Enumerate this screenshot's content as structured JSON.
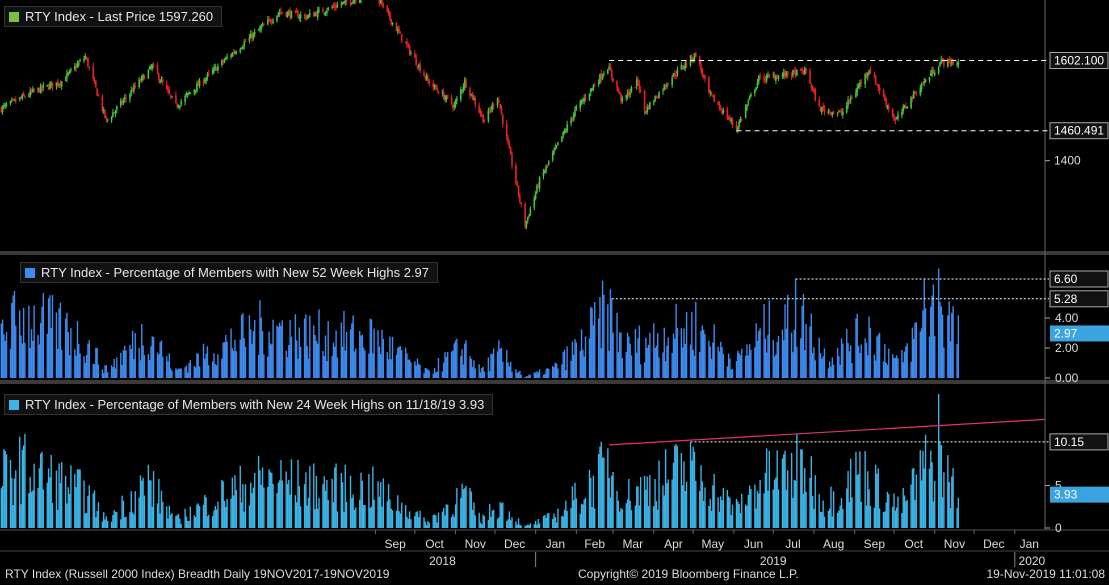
{
  "header": {
    "price_legend": "RTY Index - Last Price 1597.260"
  },
  "colors": {
    "up": "#48c43a",
    "down": "#e8231f",
    "legend_price": "#7ac142",
    "highs52": "#3d8bef",
    "highs24": "#3bb4e6",
    "trend": "#e0307a",
    "value_box": "#3aa3e0",
    "grid": "#2a2a2a",
    "axis_text": "#dcdcdc"
  },
  "chart_data": [
    {
      "type": "candlestick",
      "legend": "RTY Index - Last Price 1597.260",
      "last_price": 1597.26,
      "ylim": [
        1220,
        1720
      ],
      "y_ticks": [
        1400
      ],
      "reference_lines": [
        {
          "label": "1602.100",
          "value": 1602.1
        },
        {
          "label": "1460.491",
          "value": 1460.491
        }
      ],
      "anchors": [
        [
          "2017-11-20",
          1505
        ],
        [
          "2017-12-15",
          1540
        ],
        [
          "2018-01-05",
          1560
        ],
        [
          "2018-01-23",
          1610
        ],
        [
          "2018-02-08",
          1480
        ],
        [
          "2018-03-15",
          1590
        ],
        [
          "2018-04-02",
          1510
        ],
        [
          "2018-05-10",
          1605
        ],
        [
          "2018-06-20",
          1700
        ],
        [
          "2018-07-10",
          1690
        ],
        [
          "2018-08-31",
          1740
        ],
        [
          "2018-10-11",
          1560
        ],
        [
          "2018-10-31",
          1510
        ],
        [
          "2018-11-08",
          1560
        ],
        [
          "2018-11-23",
          1480
        ],
        [
          "2018-12-03",
          1530
        ],
        [
          "2018-12-24",
          1270
        ],
        [
          "2019-01-04",
          1360
        ],
        [
          "2019-01-31",
          1500
        ],
        [
          "2019-02-25",
          1590
        ],
        [
          "2019-03-08",
          1520
        ],
        [
          "2019-03-20",
          1560
        ],
        [
          "2019-03-25",
          1500
        ],
        [
          "2019-04-15",
          1570
        ],
        [
          "2019-05-03",
          1615
        ],
        [
          "2019-05-13",
          1535
        ],
        [
          "2019-06-03",
          1465
        ],
        [
          "2019-06-20",
          1565
        ],
        [
          "2019-07-26",
          1580
        ],
        [
          "2019-08-05",
          1505
        ],
        [
          "2019-08-22",
          1495
        ],
        [
          "2019-09-12",
          1585
        ],
        [
          "2019-10-02",
          1480
        ],
        [
          "2019-10-15",
          1530
        ],
        [
          "2019-11-06",
          1600
        ],
        [
          "2019-11-19",
          1597
        ]
      ]
    },
    {
      "type": "bar",
      "legend": "RTY Index - Percentage of Members with New 52 Week Highs 2.97",
      "last_value": "2.97",
      "ylim": [
        0,
        8
      ],
      "y_ticks": [
        {
          "value": 0,
          "label": "0.00"
        },
        {
          "value": 2,
          "label": "2.00"
        },
        {
          "value": 4,
          "label": "4.00"
        }
      ],
      "reference_lines": [
        {
          "label": "6.60",
          "value": 6.6,
          "from": "2019-07-18"
        },
        {
          "label": "5.28",
          "value": 5.28,
          "from": "2019-02-28"
        }
      ],
      "anchors": [
        [
          "2017-11-20",
          3.5
        ],
        [
          "2017-12-05",
          4.5
        ],
        [
          "2018-01-10",
          3.5
        ],
        [
          "2018-01-24",
          2.5
        ],
        [
          "2018-02-08",
          0.6
        ],
        [
          "2018-03-12",
          3.5
        ],
        [
          "2018-04-02",
          0.5
        ],
        [
          "2018-05-10",
          2.5
        ],
        [
          "2018-06-10",
          3.8
        ],
        [
          "2018-07-10",
          3.2
        ],
        [
          "2018-08-31",
          3.0
        ],
        [
          "2018-10-11",
          0.4
        ],
        [
          "2018-11-08",
          2.3
        ],
        [
          "2018-11-20",
          0.5
        ],
        [
          "2018-12-04",
          1.8
        ],
        [
          "2018-12-24",
          0.1
        ],
        [
          "2019-01-15",
          0.7
        ],
        [
          "2019-02-05",
          2.5
        ],
        [
          "2019-02-25",
          5.0
        ],
        [
          "2019-03-10",
          2.2
        ],
        [
          "2019-04-20",
          3.5
        ],
        [
          "2019-05-03",
          3.8
        ],
        [
          "2019-06-03",
          1.2
        ],
        [
          "2019-06-24",
          3.5
        ],
        [
          "2019-07-25",
          4.2
        ],
        [
          "2019-08-10",
          1.5
        ],
        [
          "2019-09-12",
          3.5
        ],
        [
          "2019-10-05",
          1.0
        ],
        [
          "2019-10-25",
          4.5
        ],
        [
          "2019-11-05",
          5.5
        ],
        [
          "2019-11-19",
          3.0
        ]
      ]
    },
    {
      "type": "bar",
      "legend": "RTY Index - Percentage of Members with New 24 Week Highs on 11/18/19 3.93",
      "last_value": "3.93",
      "ylim": [
        0,
        16.5
      ],
      "y_ticks": [
        {
          "value": 0,
          "label": "0"
        },
        {
          "value": 5,
          "label": "5"
        }
      ],
      "reference_lines": [
        {
          "label": "10.15",
          "value": 10.15,
          "from": "2019-04-29"
        }
      ],
      "trend_line": [
        [
          "2019-02-26",
          9.8
        ],
        [
          "2020-01-24",
          12.8
        ]
      ],
      "anchors": [
        [
          "2017-11-20",
          6.5
        ],
        [
          "2017-12-05",
          8.0
        ],
        [
          "2018-01-10",
          5.5
        ],
        [
          "2018-01-24",
          4.5
        ],
        [
          "2018-02-08",
          1.0
        ],
        [
          "2018-03-12",
          6.0
        ],
        [
          "2018-04-02",
          1.0
        ],
        [
          "2018-05-10",
          4.5
        ],
        [
          "2018-06-10",
          6.5
        ],
        [
          "2018-07-10",
          5.5
        ],
        [
          "2018-08-31",
          5.0
        ],
        [
          "2018-10-11",
          0.8
        ],
        [
          "2018-11-08",
          4.5
        ],
        [
          "2018-11-20",
          1.0
        ],
        [
          "2018-12-04",
          3.0
        ],
        [
          "2018-12-24",
          0.2
        ],
        [
          "2019-01-15",
          1.5
        ],
        [
          "2019-02-05",
          4.5
        ],
        [
          "2019-02-25",
          8.0
        ],
        [
          "2019-03-10",
          4.0
        ],
        [
          "2019-04-20",
          7.5
        ],
        [
          "2019-05-03",
          7.0
        ],
        [
          "2019-06-03",
          2.5
        ],
        [
          "2019-06-24",
          6.5
        ],
        [
          "2019-07-25",
          8.0
        ],
        [
          "2019-08-10",
          3.0
        ],
        [
          "2019-09-05",
          7.5
        ],
        [
          "2019-10-05",
          2.5
        ],
        [
          "2019-10-25",
          8.0
        ],
        [
          "2019-11-05",
          8.5
        ],
        [
          "2019-11-19",
          4.0
        ]
      ]
    }
  ],
  "x_axis": {
    "start": "2017-11-19",
    "end": "2020-01-24",
    "months": [
      {
        "label": "Sep",
        "date": "2018-09-16"
      },
      {
        "label": "Oct",
        "date": "2018-10-16"
      },
      {
        "label": "Nov",
        "date": "2018-11-16"
      },
      {
        "label": "Dec",
        "date": "2018-12-16"
      },
      {
        "label": "Jan",
        "date": "2019-01-16"
      },
      {
        "label": "Feb",
        "date": "2019-02-15"
      },
      {
        "label": "Mar",
        "date": "2019-03-16"
      },
      {
        "label": "Apr",
        "date": "2019-04-16"
      },
      {
        "label": "May",
        "date": "2019-05-16"
      },
      {
        "label": "Jun",
        "date": "2019-06-16"
      },
      {
        "label": "Jul",
        "date": "2019-07-16"
      },
      {
        "label": "Aug",
        "date": "2019-08-16"
      },
      {
        "label": "Sep",
        "date": "2019-09-16"
      },
      {
        "label": "Oct",
        "date": "2019-10-16"
      },
      {
        "label": "Nov",
        "date": "2019-11-16"
      },
      {
        "label": "Dec",
        "date": "2019-12-16"
      },
      {
        "label": "Jan",
        "date": "2020-01-12"
      }
    ],
    "years": [
      {
        "label": "2018",
        "date": "2018-10-22",
        "boundary": "2019-01-01"
      },
      {
        "label": "2019",
        "date": "2019-07-01",
        "boundary": "2020-01-01"
      },
      {
        "label": "2020",
        "date": "2020-01-14"
      }
    ]
  },
  "footer": {
    "left": "RTY Index (Russell 2000 Index) Breadth  Daily 19NOV2017-19NOV2019",
    "center": "Copyright© 2019 Bloomberg Finance L.P.",
    "right": "19-Nov-2019 11:01:08"
  }
}
